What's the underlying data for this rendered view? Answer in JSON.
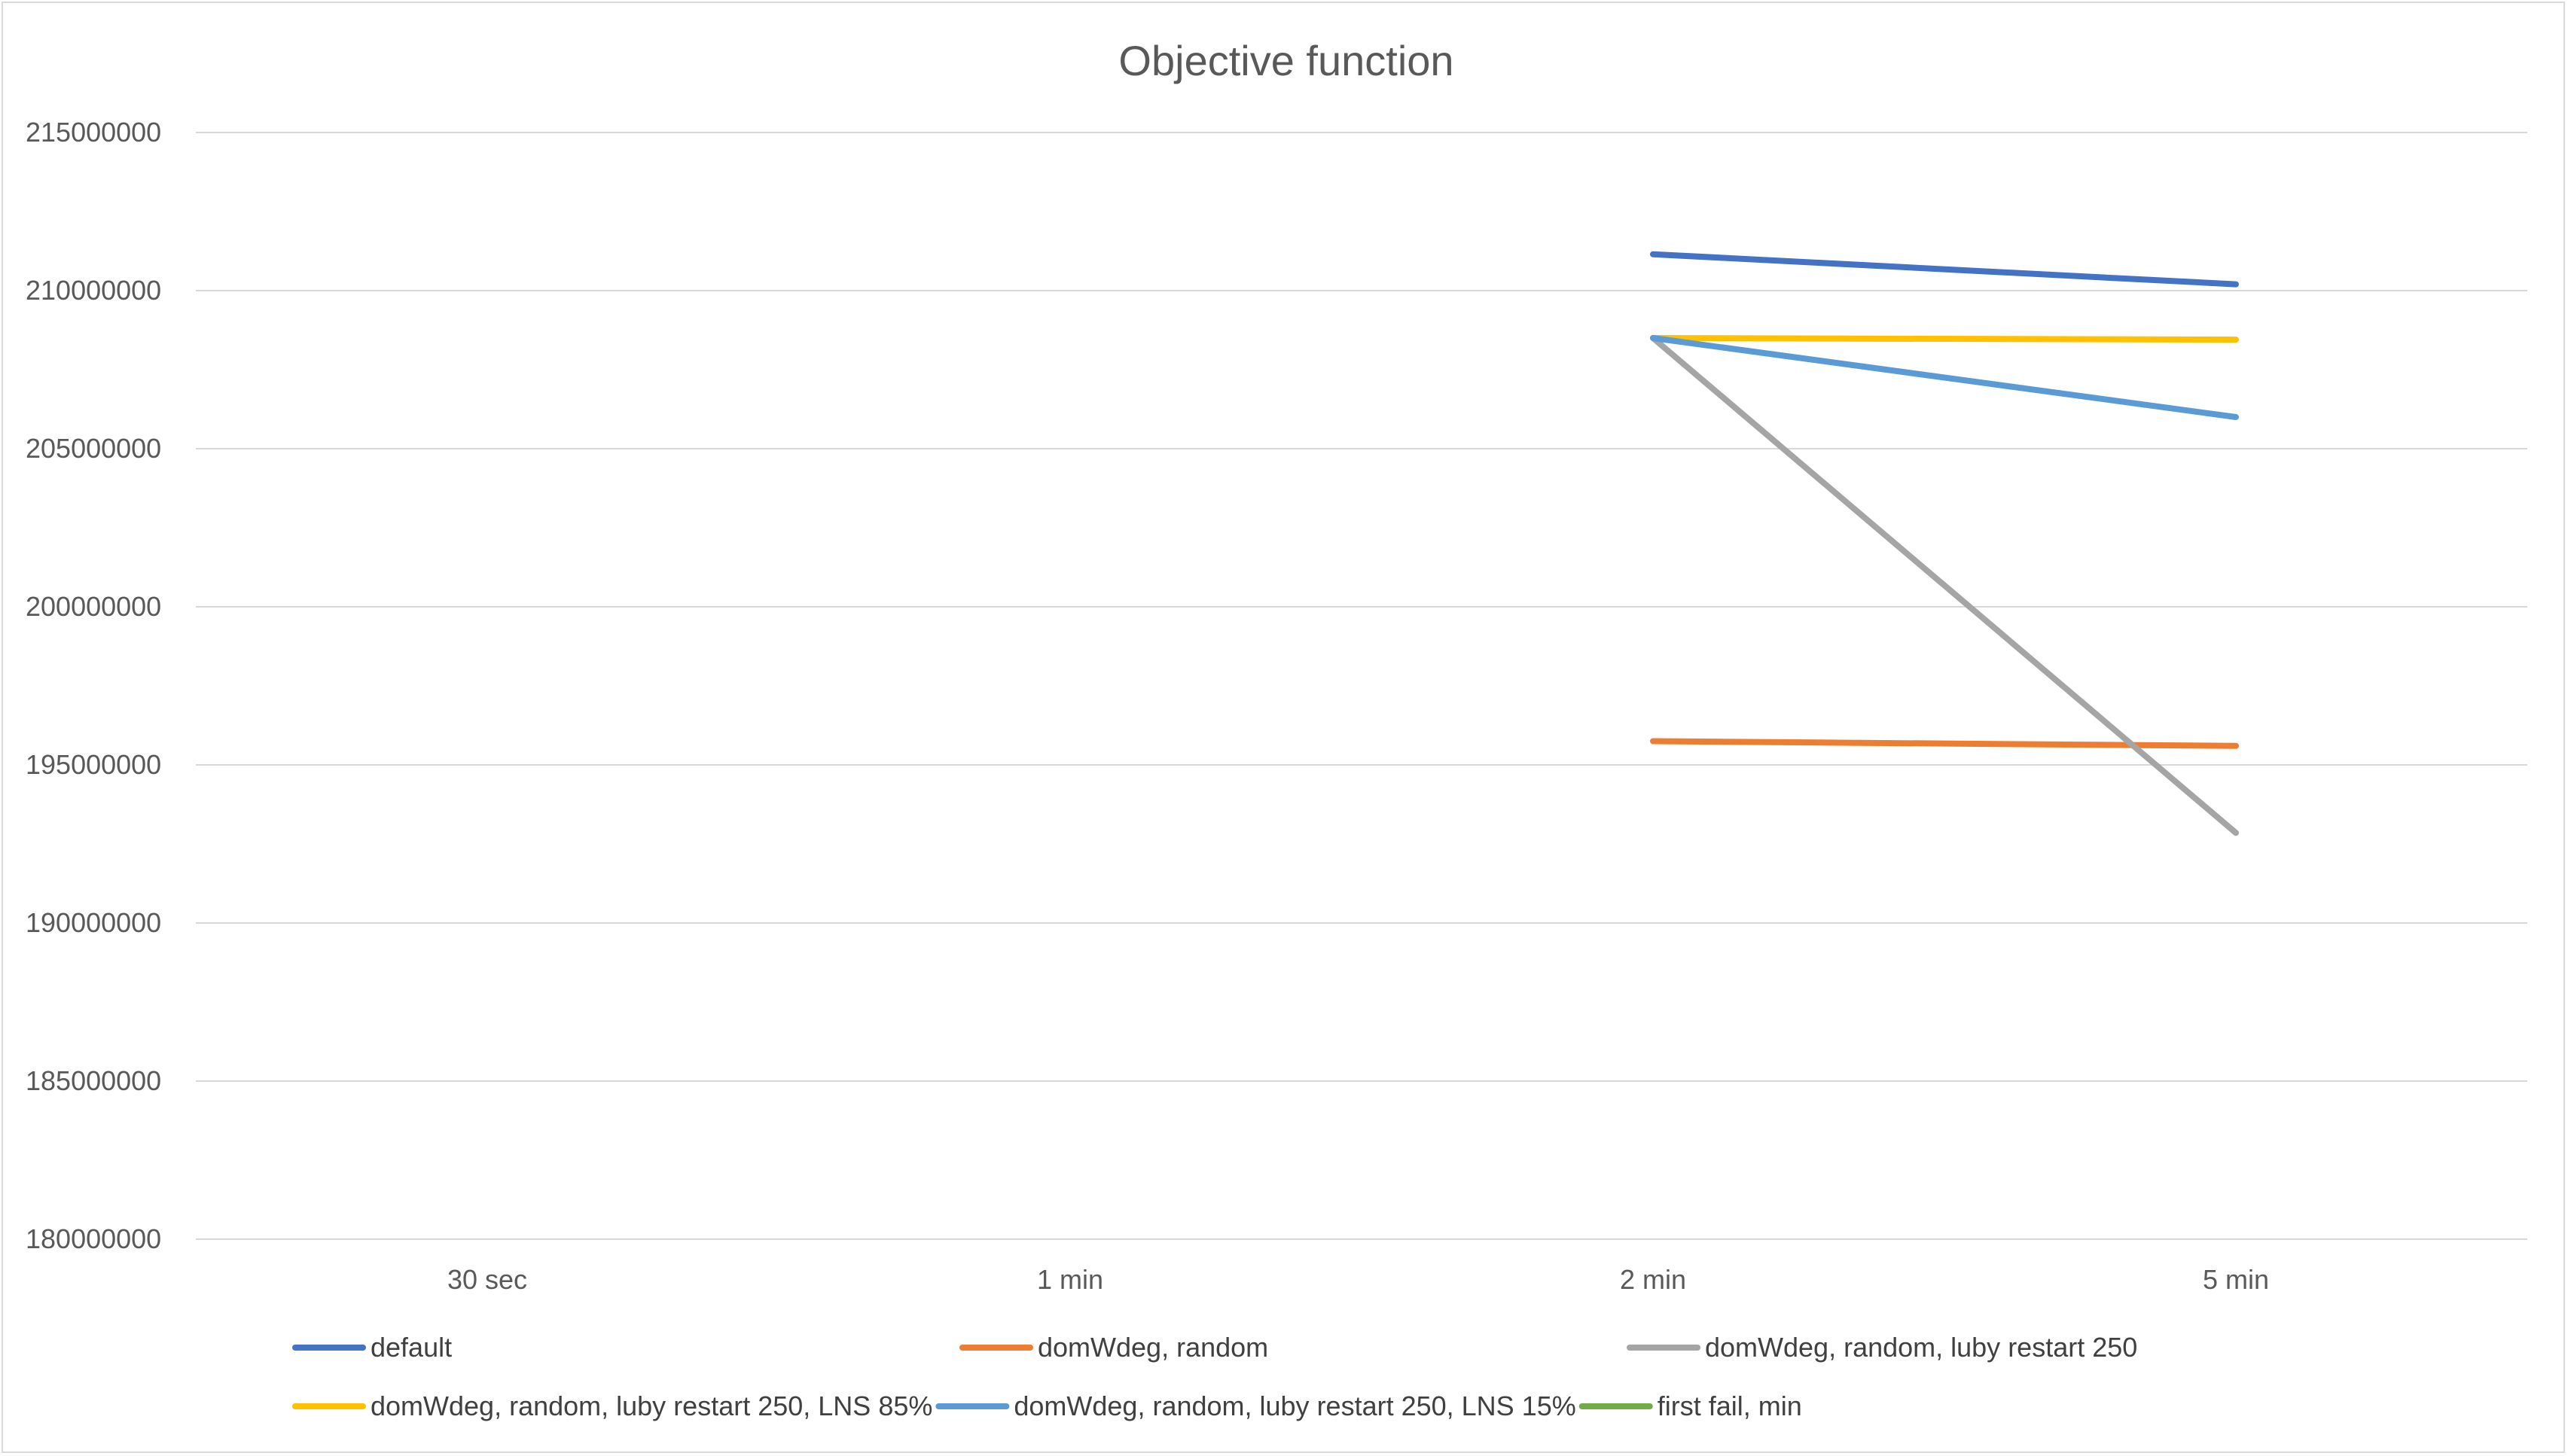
{
  "chart_data": {
    "type": "line",
    "title": "Objective function",
    "xlabel": "",
    "ylabel": "",
    "categories": [
      "30 sec",
      "1 min",
      "2 min",
      "5 min"
    ],
    "ylim": [
      180000000,
      215000000
    ],
    "yticks": [
      180000000,
      185000000,
      190000000,
      195000000,
      200000000,
      205000000,
      210000000,
      215000000
    ],
    "grid": true,
    "legend_position": "bottom",
    "series": [
      {
        "name": "default",
        "color": "#4472C4",
        "values": [
          null,
          null,
          211150000,
          210200000
        ]
      },
      {
        "name": "domWdeg, random",
        "color": "#ED7D31",
        "values": [
          null,
          null,
          195750000,
          195600000
        ]
      },
      {
        "name": "domWdeg, random, luby restart 250",
        "color": "#A5A5A5",
        "values": [
          null,
          null,
          208500000,
          192850000
        ]
      },
      {
        "name": "domWdeg, random, luby restart 250, LNS 85%",
        "color": "#FFC000",
        "values": [
          null,
          null,
          208500000,
          208450000
        ]
      },
      {
        "name": "domWdeg, random, luby restart 250, LNS 15%",
        "color": "#5B9BD5",
        "values": [
          null,
          null,
          208500000,
          206000000
        ]
      },
      {
        "name": "first fail, min",
        "color": "#70AD47",
        "values": [
          null,
          null,
          null,
          null
        ]
      }
    ]
  }
}
